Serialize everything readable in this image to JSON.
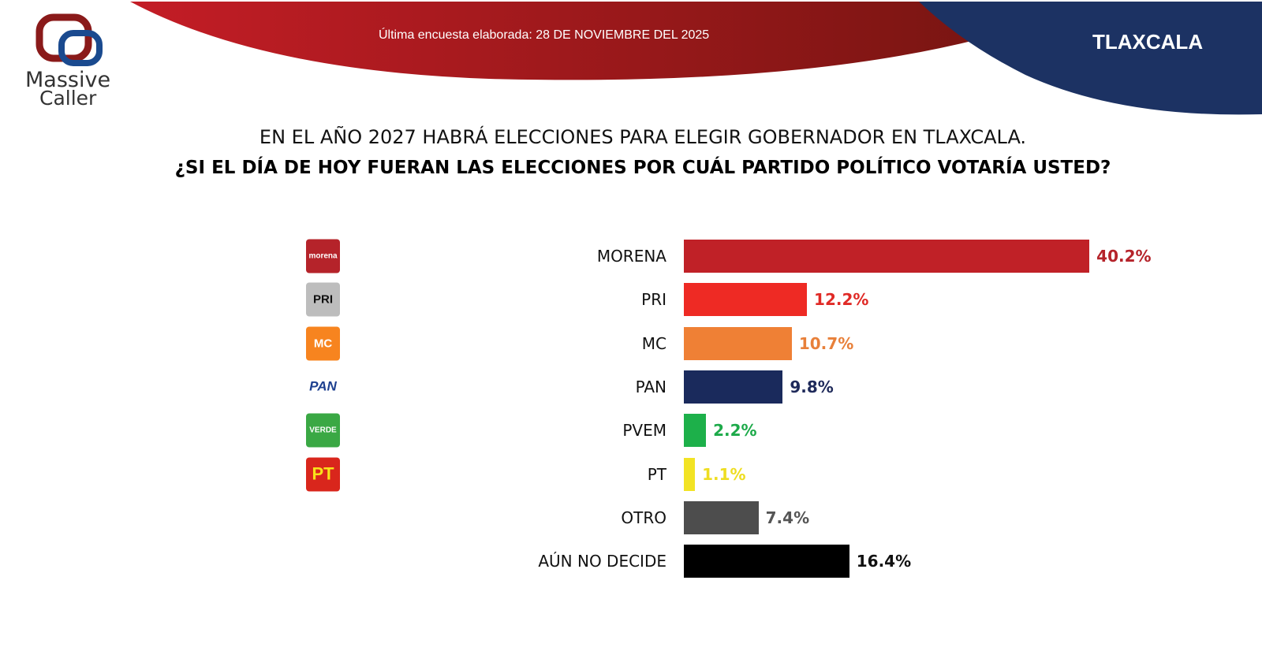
{
  "header": {
    "brand_line1": "Massive",
    "brand_line2": "Caller",
    "date_label": "Última encuesta elaborada: 28 DE NOVIEMBRE DEL 2025",
    "state": "TLAXCALA"
  },
  "question": {
    "line1": "EN EL AÑO 2027 HABRÁ ELECCIONES PARA ELEGIR GOBERNADOR EN TLAXCALA.",
    "line2": "¿SI EL DÍA DE HOY FUERAN LAS ELECCIONES POR CUÁL PARTIDO POLÍTICO VOTARÍA USTED?"
  },
  "party_logos": [
    {
      "text": "morena",
      "bg": "#b5232a",
      "fg": "#ffffff"
    },
    {
      "text": "PRI",
      "bg": "#bdbdbd",
      "fg": "#111111"
    },
    {
      "text": "MC",
      "bg": "#f7841f",
      "fg": "#ffffff"
    },
    {
      "text": "PAN",
      "bg": "#ffffff",
      "fg": "#1d3f8f"
    },
    {
      "text": "VERDE",
      "bg": "#3aa844",
      "fg": "#ffffff"
    },
    {
      "text": "PT",
      "bg": "#d9261c",
      "fg": "#f8e21a"
    }
  ],
  "chart_data": {
    "type": "bar",
    "orientation": "horizontal",
    "categories": [
      "MORENA",
      "PRI",
      "MC",
      "PAN",
      "PVEM",
      "PT",
      "OTRO",
      "AÚN NO DECIDE"
    ],
    "values": [
      40.2,
      12.2,
      10.7,
      9.8,
      2.2,
      1.1,
      7.4,
      16.4
    ],
    "value_labels": [
      "40.2%",
      "12.2%",
      "10.7%",
      "9.8%",
      "2.2%",
      "1.1%",
      "7.4%",
      "16.4%"
    ],
    "bar_colors": [
      "#c02127",
      "#ee2a24",
      "#ef8035",
      "#1a2a5c",
      "#1db04a",
      "#f2e324",
      "#4d4d4d",
      "#000000"
    ],
    "label_colors": [
      "#b5232a",
      "#e02a26",
      "#e8803a",
      "#1f2a5a",
      "#1daa4a",
      "#eedd22",
      "#555555",
      "#111111"
    ],
    "grid": false,
    "legend": "none"
  }
}
